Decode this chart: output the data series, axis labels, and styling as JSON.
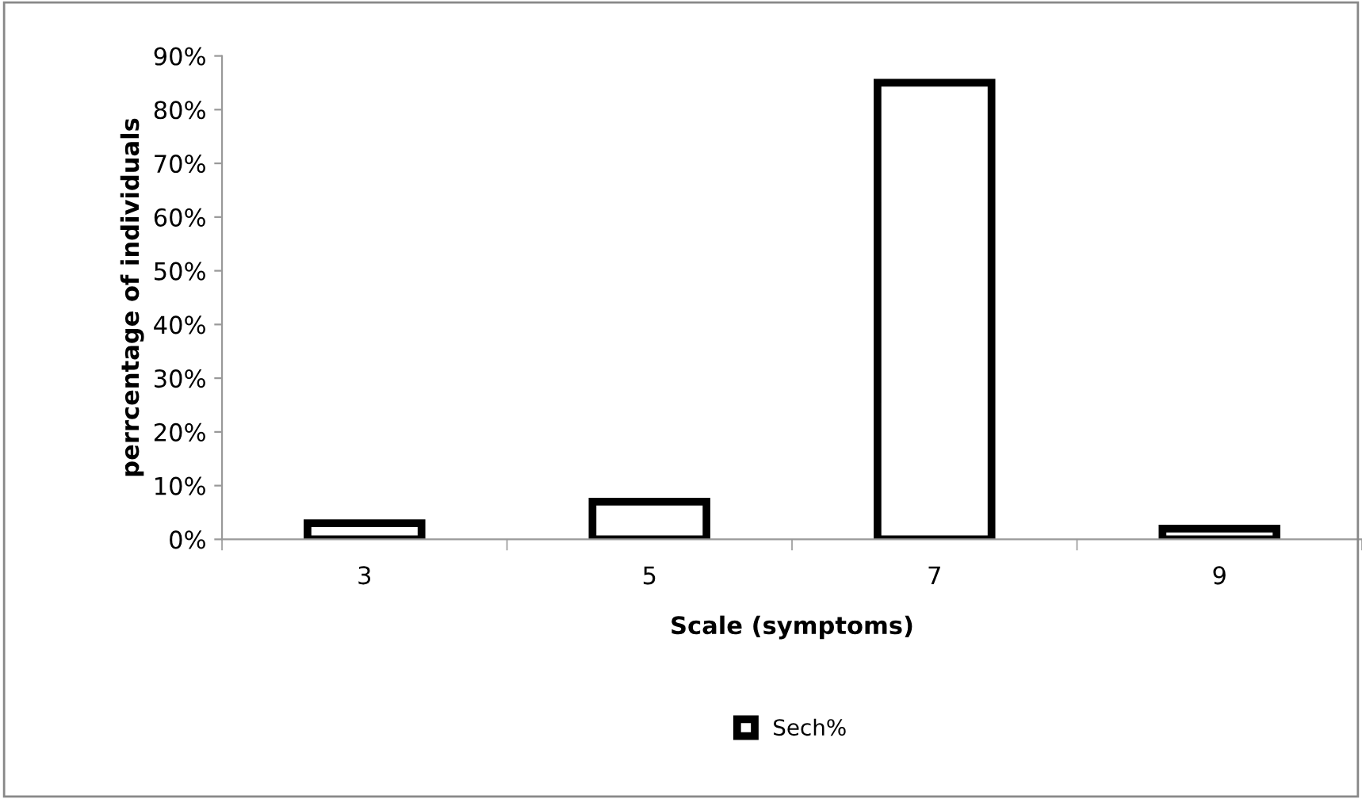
{
  "chart_data": {
    "type": "bar",
    "xlabel": "Scale (symptoms)",
    "ylabel": "perrcentage of individuals",
    "categories": [
      "3",
      "5",
      "7",
      "9"
    ],
    "series": [
      {
        "name": "Sech%",
        "color": "#ffffff",
        "values": [
          3,
          7,
          85,
          2
        ]
      }
    ],
    "ylim": [
      0,
      90
    ],
    "yticks": [
      {
        "value": 0,
        "label": "0%"
      },
      {
        "value": 10,
        "label": "10%"
      },
      {
        "value": 20,
        "label": "20%"
      },
      {
        "value": 30,
        "label": "30%"
      },
      {
        "value": 40,
        "label": "40%"
      },
      {
        "value": 50,
        "label": "50%"
      },
      {
        "value": 60,
        "label": "60%"
      },
      {
        "value": 70,
        "label": "70%"
      },
      {
        "value": 80,
        "label": "80%"
      },
      {
        "value": 90,
        "label": "90%"
      }
    ],
    "grid": false,
    "legend": "bottom"
  }
}
